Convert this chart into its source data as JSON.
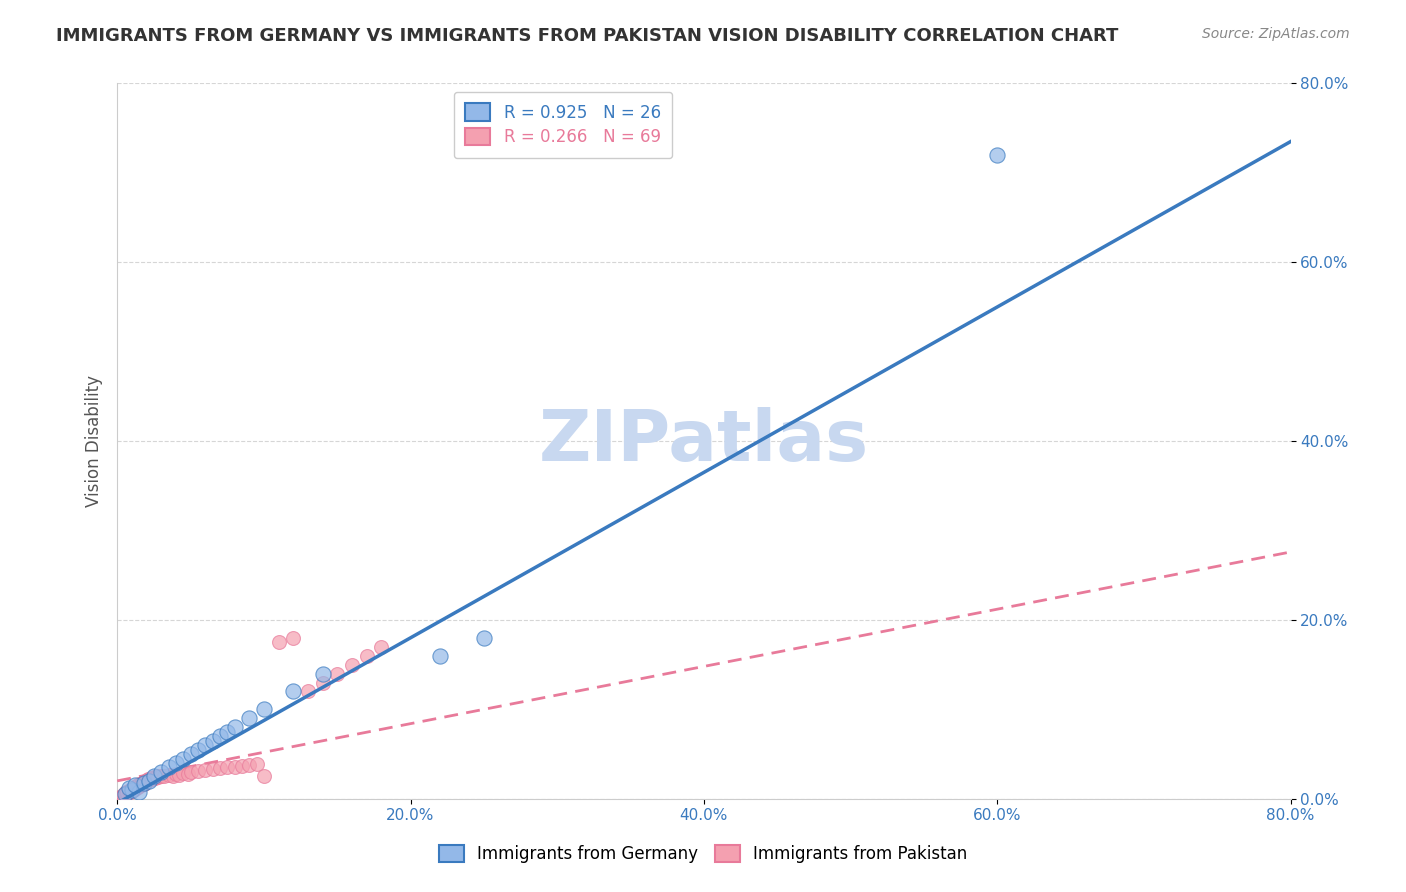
{
  "title": "IMMIGRANTS FROM GERMANY VS IMMIGRANTS FROM PAKISTAN VISION DISABILITY CORRELATION CHART",
  "source": "Source: ZipAtlas.com",
  "xlabel": "",
  "ylabel": "Vision Disability",
  "xlim": [
    0.0,
    0.8
  ],
  "ylim": [
    0.0,
    0.8
  ],
  "xticks": [
    0.0,
    0.2,
    0.4,
    0.6,
    0.8
  ],
  "yticks": [
    0.0,
    0.2,
    0.4,
    0.6,
    0.8
  ],
  "xtick_labels": [
    "0.0%",
    "20.0%",
    "40.0%",
    "60.0%",
    "80.0%"
  ],
  "ytick_labels": [
    "0.0%",
    "20.0%",
    "40.0%",
    "60.0%",
    "80.0%"
  ],
  "germany_R": 0.925,
  "germany_N": 26,
  "pakistan_R": 0.266,
  "pakistan_N": 69,
  "germany_color": "#93b8e8",
  "pakistan_color": "#f4a0b0",
  "germany_line_color": "#3a7abf",
  "pakistan_line_color": "#e87a9a",
  "watermark": "ZIPatlas",
  "watermark_color": "#c8d8f0",
  "legend_label_germany": "Immigrants from Germany",
  "legend_label_pakistan": "Immigrants from Pakistan",
  "germany_scatter_x": [
    0.005,
    0.01,
    0.015,
    0.008,
    0.012,
    0.018,
    0.022,
    0.025,
    0.03,
    0.035,
    0.04,
    0.045,
    0.05,
    0.055,
    0.06,
    0.065,
    0.07,
    0.075,
    0.08,
    0.09,
    0.1,
    0.12,
    0.14,
    0.22,
    0.25,
    0.6
  ],
  "germany_scatter_y": [
    0.005,
    0.01,
    0.008,
    0.012,
    0.015,
    0.018,
    0.02,
    0.025,
    0.03,
    0.035,
    0.04,
    0.045,
    0.05,
    0.055,
    0.06,
    0.065,
    0.07,
    0.075,
    0.08,
    0.09,
    0.1,
    0.12,
    0.14,
    0.16,
    0.18,
    0.72
  ],
  "pakistan_scatter_x": [
    0.002,
    0.003,
    0.004,
    0.005,
    0.005,
    0.006,
    0.006,
    0.007,
    0.007,
    0.008,
    0.008,
    0.009,
    0.009,
    0.01,
    0.01,
    0.011,
    0.011,
    0.012,
    0.012,
    0.013,
    0.013,
    0.014,
    0.014,
    0.015,
    0.015,
    0.016,
    0.016,
    0.017,
    0.017,
    0.018,
    0.018,
    0.019,
    0.02,
    0.02,
    0.021,
    0.022,
    0.023,
    0.024,
    0.025,
    0.026,
    0.027,
    0.028,
    0.03,
    0.032,
    0.035,
    0.038,
    0.04,
    0.042,
    0.045,
    0.048,
    0.05,
    0.055,
    0.06,
    0.065,
    0.07,
    0.075,
    0.08,
    0.085,
    0.09,
    0.095,
    0.1,
    0.11,
    0.12,
    0.13,
    0.14,
    0.15,
    0.16,
    0.17,
    0.18
  ],
  "pakistan_scatter_y": [
    0.002,
    0.003,
    0.004,
    0.005,
    0.006,
    0.005,
    0.007,
    0.006,
    0.008,
    0.007,
    0.009,
    0.008,
    0.01,
    0.009,
    0.011,
    0.01,
    0.012,
    0.011,
    0.013,
    0.012,
    0.014,
    0.013,
    0.015,
    0.014,
    0.016,
    0.015,
    0.017,
    0.016,
    0.018,
    0.017,
    0.019,
    0.018,
    0.02,
    0.021,
    0.022,
    0.021,
    0.023,
    0.022,
    0.024,
    0.023,
    0.025,
    0.024,
    0.026,
    0.025,
    0.027,
    0.026,
    0.028,
    0.027,
    0.029,
    0.028,
    0.03,
    0.031,
    0.032,
    0.033,
    0.034,
    0.035,
    0.036,
    0.037,
    0.038,
    0.039,
    0.025,
    0.175,
    0.18,
    0.12,
    0.13,
    0.14,
    0.15,
    0.16,
    0.17
  ]
}
